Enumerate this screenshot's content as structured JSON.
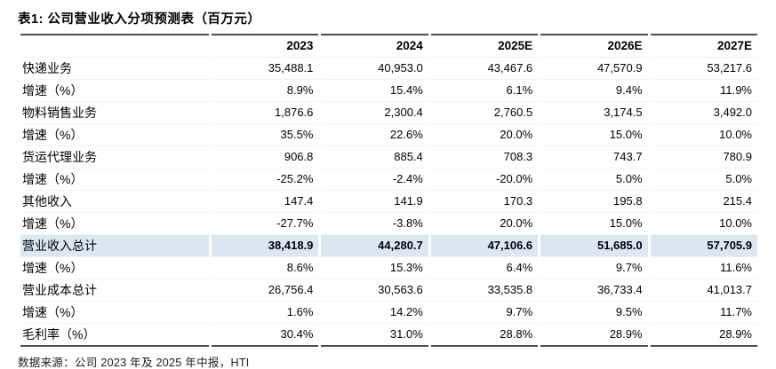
{
  "title": "表1: 公司营业收入分项预测表（百万元）",
  "source_note": "数据来源：公司 2023 年及 2025 年中报，HTI",
  "colors": {
    "highlight_row_bg": "#dbe8f4",
    "heavy_rule": "#4f4f4f",
    "light_rule": "#f3f3f3",
    "text": "#000000"
  },
  "table": {
    "corner_label": "",
    "columns": [
      "2023",
      "2024",
      "2025E",
      "2026E",
      "2027E"
    ],
    "rows": [
      {
        "label": "快递业务",
        "values": [
          "35,488.1",
          "40,953.0",
          "43,467.6",
          "47,570.9",
          "53,217.6"
        ],
        "style": "bold-label"
      },
      {
        "label": "增速（%）",
        "values": [
          "8.9%",
          "15.4%",
          "6.1%",
          "9.4%",
          "11.9%"
        ],
        "style": "plain"
      },
      {
        "label": "物料销售业务",
        "values": [
          "1,876.6",
          "2,300.4",
          "2,760.5",
          "3,174.5",
          "3,492.0"
        ],
        "style": "bold-label"
      },
      {
        "label": "增速（%）",
        "values": [
          "35.5%",
          "22.6%",
          "20.0%",
          "15.0%",
          "10.0%"
        ],
        "style": "plain"
      },
      {
        "label": "货运代理业务",
        "values": [
          "906.8",
          "885.4",
          "708.3",
          "743.7",
          "780.9"
        ],
        "style": "bold-label"
      },
      {
        "label": "增速（%）",
        "values": [
          "-25.2%",
          "-2.4%",
          "-20.0%",
          "5.0%",
          "5.0%"
        ],
        "style": "plain"
      },
      {
        "label": "其他收入",
        "values": [
          "147.4",
          "141.9",
          "170.3",
          "195.8",
          "215.4"
        ],
        "style": "bold-label"
      },
      {
        "label": "增速（%）",
        "values": [
          "-27.7%",
          "-3.8%",
          "20.0%",
          "15.0%",
          "10.0%"
        ],
        "style": "plain"
      },
      {
        "label": "营业收入总计",
        "values": [
          "38,418.9",
          "44,280.7",
          "47,106.6",
          "51,685.0",
          "57,705.9"
        ],
        "style": "total-highlight"
      },
      {
        "label": "增速（%）",
        "values": [
          "8.6%",
          "15.3%",
          "6.4%",
          "9.7%",
          "11.6%"
        ],
        "style": "bold-label"
      },
      {
        "label": "营业成本总计",
        "values": [
          "26,756.4",
          "30,563.6",
          "33,535.8",
          "36,733.4",
          "41,013.7"
        ],
        "style": "bold-label"
      },
      {
        "label": "增速（%）",
        "values": [
          "1.6%",
          "14.2%",
          "9.7%",
          "9.5%",
          "11.7%"
        ],
        "style": "bold-label"
      },
      {
        "label": "毛利率（%）",
        "values": [
          "30.4%",
          "31.0%",
          "28.8%",
          "28.9%",
          "28.9%"
        ],
        "style": "bold-label"
      }
    ]
  }
}
